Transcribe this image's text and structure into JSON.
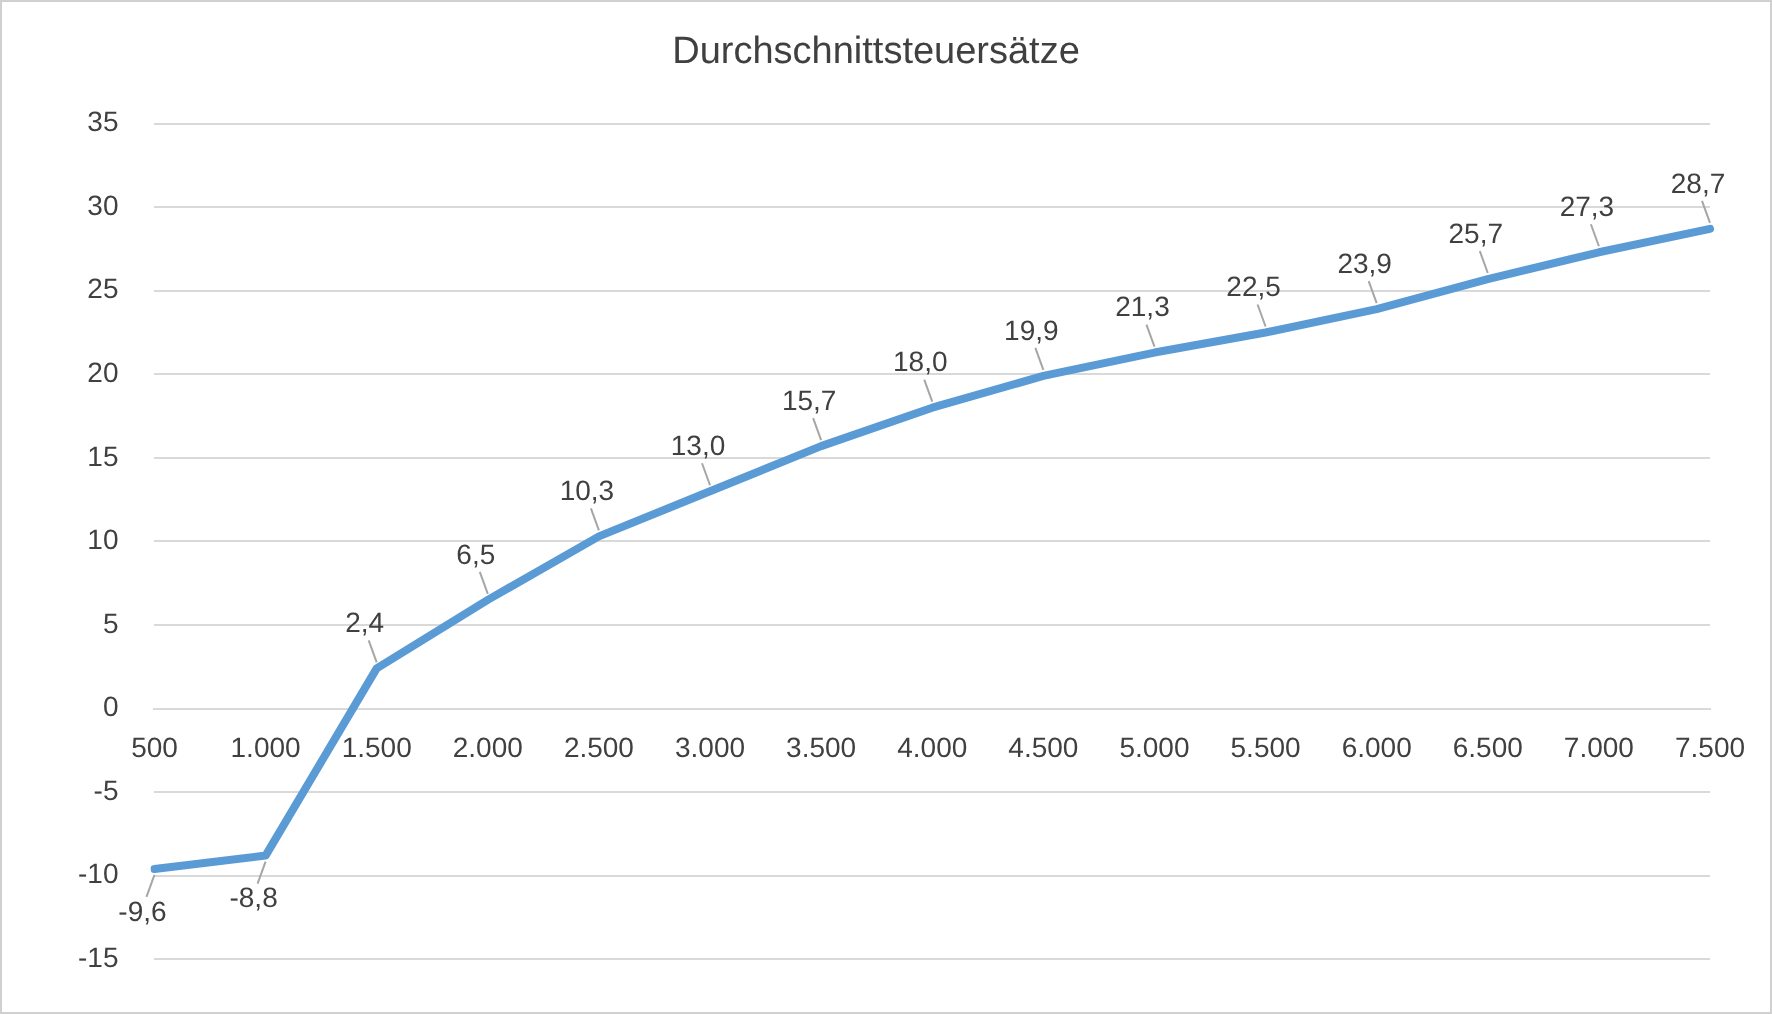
{
  "chart_data": {
    "type": "line",
    "title": "Durchschnittsteuersätze",
    "categories": [
      "500",
      "1.000",
      "1.500",
      "2.000",
      "2.500",
      "3.000",
      "3.500",
      "4.000",
      "4.500",
      "5.000",
      "5.500",
      "6.000",
      "6.500",
      "7.000",
      "7.500"
    ],
    "series": [
      {
        "color": "#5b9bd5",
        "values": [
          -9.6,
          -8.8,
          2.4,
          6.5,
          10.3,
          13.0,
          15.7,
          18.0,
          19.9,
          21.3,
          22.5,
          23.9,
          25.7,
          27.3,
          28.7
        ],
        "value_labels": [
          "-9,6",
          "-8,8",
          "2,4",
          "6,5",
          "10,3",
          "13,0",
          "15,7",
          "18,0",
          "19,9",
          "21,3",
          "22,5",
          "23,9",
          "25,7",
          "27,3",
          "28,7"
        ]
      }
    ],
    "ylim": [
      -15,
      35
    ],
    "yticks": [
      -15,
      -10,
      -5,
      0,
      5,
      10,
      15,
      20,
      25,
      30,
      35
    ],
    "grid": "y",
    "legend": false,
    "marker": "none",
    "line_style": "solid"
  }
}
